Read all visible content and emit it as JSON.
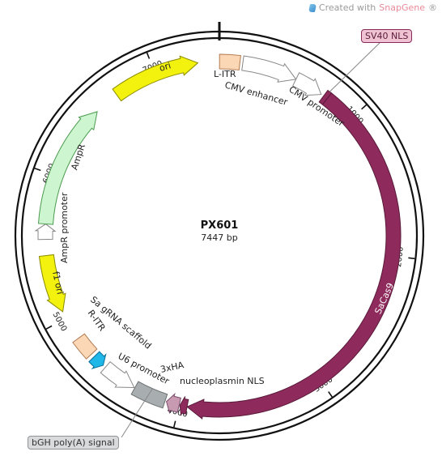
{
  "branding": {
    "created_with": "Created with ",
    "app": "SnapGene",
    "reg": "®"
  },
  "plasmid": {
    "name": "PX601",
    "length_label": "7447 bp",
    "length_bp": 7447
  },
  "ticks": [
    {
      "bp": 1000,
      "label": "1000"
    },
    {
      "bp": 2000,
      "label": "2000"
    },
    {
      "bp": 3000,
      "label": "3000"
    },
    {
      "bp": 4000,
      "label": "4000"
    },
    {
      "bp": 5000,
      "label": "5000"
    },
    {
      "bp": 6000,
      "label": "6000"
    },
    {
      "bp": 7000,
      "label": "7000"
    }
  ],
  "features": [
    {
      "id": "l-itr",
      "label": "L-ITR",
      "start": 1,
      "end": 140,
      "dir": "none",
      "color": "#fbd7b5",
      "stroke": "#b07a50"
    },
    {
      "id": "cmv-enhancer",
      "label": "CMV enhancer",
      "start": 160,
      "end": 540,
      "dir": "fwd",
      "color": "#ffffff",
      "stroke": "#888888"
    },
    {
      "id": "cmv-promoter",
      "label": "CMV promoter",
      "start": 540,
      "end": 740,
      "dir": "fwd",
      "color": "#ffffff",
      "stroke": "#888888"
    },
    {
      "id": "sv40-nls",
      "label": "SV40 NLS",
      "start": 760,
      "end": 790,
      "dir": "none",
      "color": "#8e2b5c",
      "stroke": "#5a1a3a"
    },
    {
      "id": "sacas9",
      "label": "SaCas9",
      "start": 790,
      "end": 3945,
      "dir": "fwd",
      "color": "#8e2b5c",
      "stroke": "#5a1a3a"
    },
    {
      "id": "nucleoplasmin-nls",
      "label": "nucleoplasmin NLS",
      "start": 3945,
      "end": 3995,
      "dir": "fwd",
      "color": "#8e2b5c",
      "stroke": "#5a1a3a"
    },
    {
      "id": "3xha",
      "label": "3xHA",
      "start": 4000,
      "end": 4090,
      "dir": "fwd",
      "color": "#c89ab2",
      "stroke": "#7a4a6a"
    },
    {
      "id": "bgh-polya",
      "label": "bGH poly(A) signal",
      "start": 4100,
      "end": 4325,
      "dir": "none",
      "color": "#a8adb0",
      "stroke": "#6a6f72"
    },
    {
      "id": "u6-promoter",
      "label": "U6 promoter",
      "start": 4330,
      "end": 4570,
      "dir": "rev",
      "color": "#ffffff",
      "stroke": "#888888"
    },
    {
      "id": "sa-grna-scaffold",
      "label": "Sa gRNA scaffold",
      "start": 4590,
      "end": 4675,
      "dir": "rev",
      "color": "#1fb6e8",
      "stroke": "#0a6f99"
    },
    {
      "id": "r-itr",
      "label": "R-ITR",
      "start": 4700,
      "end": 4840,
      "dir": "none",
      "color": "#fbd7b5",
      "stroke": "#b07a50"
    },
    {
      "id": "f1-ori",
      "label": "f1 ori",
      "start": 5050,
      "end": 5450,
      "dir": "rev",
      "color": "#f2f20e",
      "stroke": "#8a8a00"
    },
    {
      "id": "ampr-promoter",
      "label": "AmpR promoter",
      "start": 5560,
      "end": 5665,
      "dir": "fwd",
      "color": "#ffffff",
      "stroke": "#888888"
    },
    {
      "id": "ampr",
      "label": "AmpR",
      "start": 5665,
      "end": 6525,
      "dir": "fwd",
      "color": "#cdf5cf",
      "stroke": "#4a9a4e"
    },
    {
      "id": "ori",
      "label": "ori",
      "start": 6700,
      "end": 7300,
      "dir": "fwd",
      "color": "#f2f20e",
      "stroke": "#8a8a00"
    }
  ],
  "callouts": {
    "sv40_nls": "SV40 NLS",
    "bgh_polya": "bGH poly(A) signal"
  }
}
